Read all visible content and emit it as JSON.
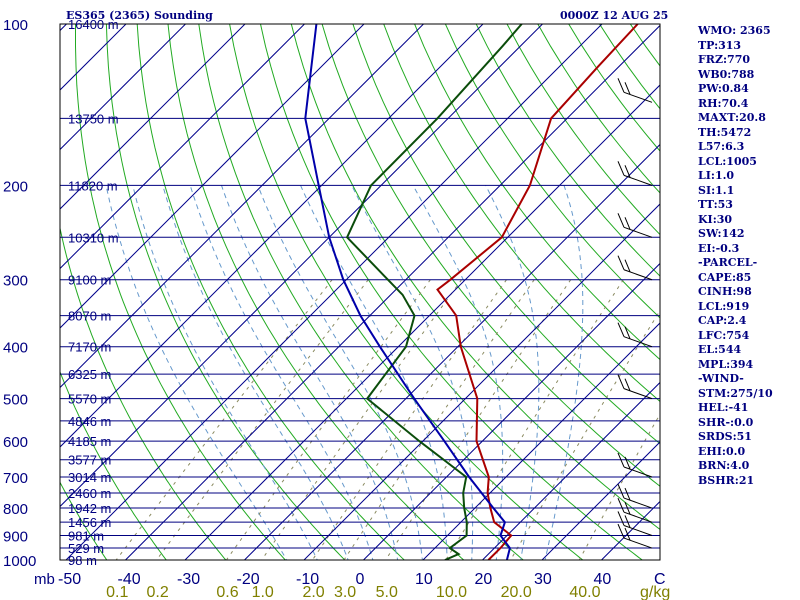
{
  "header": {
    "station": "ES365 (2365) Sounding",
    "time": "0000Z 12 AUG 25"
  },
  "colors": {
    "isobar": "#000080",
    "isotherm": "#00008b",
    "dry_adiabat": "#22aa22",
    "moist_adiabat": "#6699cc",
    "mixing_ratio": "#8a8a60",
    "temperature": "#aa0000",
    "dewpoint": "#0b4d0b",
    "parcel": "#0000aa",
    "text": "#000080",
    "mixing_label": "#808000"
  },
  "axes": {
    "pressure_unit": "mb",
    "temperature_unit": "C",
    "mixing_unit": "g/kg",
    "pressure_ticks": [
      "100",
      "200",
      "300",
      "400",
      "500",
      "600",
      "700",
      "800",
      "900",
      "1000"
    ],
    "temperature_ticks": [
      "-50",
      "-40",
      "-30",
      "-20",
      "-10",
      "0",
      "10",
      "20",
      "30",
      "40"
    ],
    "mixing_ratio_ticks": [
      "0.1",
      "0.2",
      "0.6",
      "1.0",
      "2.0",
      "3.0",
      "5.0",
      "10.0",
      "20.0",
      "40.0"
    ],
    "height_labels": [
      "16400 m",
      "13750 m",
      "11820 m",
      "10310 m",
      "9100 m",
      "8070 m",
      "7170 m",
      "6325 m",
      "5570 m",
      "4846 m",
      "4185 m",
      "3577 m",
      "3014 m",
      "2460 m",
      "1942 m",
      "1456 m",
      "981 m",
      "529 m",
      "98 m"
    ]
  },
  "stats": [
    "WMO: 2365",
    "TP:313",
    "FRZ:770",
    "WB0:788",
    "PW:0.84",
    "RH:70.4",
    "MAXT:20.8",
    "TH:5472",
    "L57:6.3",
    "LCL:1005",
    "LI:1.0",
    "SI:1.1",
    "TT:53",
    "KI:30",
    "SW:142",
    "EI:-0.3",
    "-PARCEL-",
    "CAPE:85",
    "CINH:98",
    "LCL:919",
    "CAP:2.4",
    "LFC:754",
    "EL:544",
    "MPL:394",
    "-WIND-",
    "STM:275/10",
    "HEL:-41",
    "SHR-:0.0",
    "SRDS:51",
    "EHI:0.0",
    "BRN:4.0",
    "BSHR:21"
  ],
  "chart_data": {
    "type": "skew-t",
    "pressure_range_mb": [
      100,
      1000
    ],
    "pressure_scale": "log",
    "temperature_range_c": [
      -50,
      50
    ],
    "grid": true,
    "levels": [
      {
        "p": 1000,
        "height": "98 m"
      },
      {
        "p": 950,
        "height": "529 m"
      },
      {
        "p": 900,
        "height": "981 m"
      },
      {
        "p": 850,
        "height": "1456 m"
      },
      {
        "p": 800,
        "height": "1942 m"
      },
      {
        "p": 750,
        "height": "2460 m"
      },
      {
        "p": 700,
        "height": "3014 m"
      },
      {
        "p": 650,
        "height": "3577 m"
      },
      {
        "p": 600,
        "height": "4185 m"
      },
      {
        "p": 550,
        "height": "4846 m"
      },
      {
        "p": 500,
        "height": "5570 m"
      },
      {
        "p": 450,
        "height": "6325 m"
      },
      {
        "p": 400,
        "height": "7170 m"
      },
      {
        "p": 350,
        "height": "8070 m"
      },
      {
        "p": 300,
        "height": "9100 m"
      },
      {
        "p": 250,
        "height": "10310 m"
      },
      {
        "p": 200,
        "height": "11820 m"
      },
      {
        "p": 150,
        "height": "13750 m"
      },
      {
        "p": 100,
        "height": "16400 m"
      }
    ],
    "mixing_ratio_lines_gkg": [
      0.1,
      0.2,
      0.6,
      1.0,
      2.0,
      3.0,
      5.0,
      10.0,
      20.0,
      40.0
    ],
    "series": [
      {
        "name": "temperature",
        "points": [
          [
            1000,
            21
          ],
          [
            950,
            21
          ],
          [
            900,
            20.7
          ],
          [
            850,
            15.6
          ],
          [
            800,
            12.6
          ],
          [
            750,
            9.6
          ],
          [
            700,
            7.1
          ],
          [
            600,
            -1
          ],
          [
            500,
            -8
          ],
          [
            400,
            -19.5
          ],
          [
            350,
            -25.5
          ],
          [
            313,
            -33
          ],
          [
            300,
            -32.5
          ],
          [
            250,
            -31
          ],
          [
            200,
            -35
          ],
          [
            150,
            -42.7
          ],
          [
            120,
            -43.5
          ],
          [
            100,
            -44
          ]
        ]
      },
      {
        "name": "dewpoint",
        "points": [
          [
            1000,
            13.7
          ],
          [
            975,
            15
          ],
          [
            950,
            12.5
          ],
          [
            900,
            13.2
          ],
          [
            850,
            11
          ],
          [
            800,
            8.2
          ],
          [
            750,
            5.5
          ],
          [
            700,
            3.3
          ],
          [
            600,
            -10.6
          ],
          [
            500,
            -26.5
          ],
          [
            400,
            -28.7
          ],
          [
            350,
            -32.5
          ],
          [
            320,
            -38
          ],
          [
            300,
            -43
          ],
          [
            250,
            -57
          ],
          [
            200,
            -61.7
          ],
          [
            150,
            -61.8
          ],
          [
            110,
            -63
          ],
          [
            100,
            -63.5
          ]
        ]
      },
      {
        "name": "parcel",
        "points": [
          [
            1000,
            24.1
          ],
          [
            950,
            22.6
          ],
          [
            900,
            18.9
          ],
          [
            850,
            17.4
          ],
          [
            800,
            13.1
          ],
          [
            750,
            8.6
          ],
          [
            700,
            3.8
          ],
          [
            600,
            -6.4
          ],
          [
            500,
            -18.6
          ],
          [
            400,
            -33.1
          ],
          [
            350,
            -41.6
          ],
          [
            300,
            -50.5
          ],
          [
            250,
            -60
          ],
          [
            200,
            -70.5
          ],
          [
            150,
            -84
          ],
          [
            100,
            -98
          ]
        ]
      }
    ],
    "winds_barb_pressures": [
      140,
      200,
      250,
      300,
      400,
      500,
      700,
      800,
      850,
      900,
      950
    ],
    "legend": "none"
  }
}
